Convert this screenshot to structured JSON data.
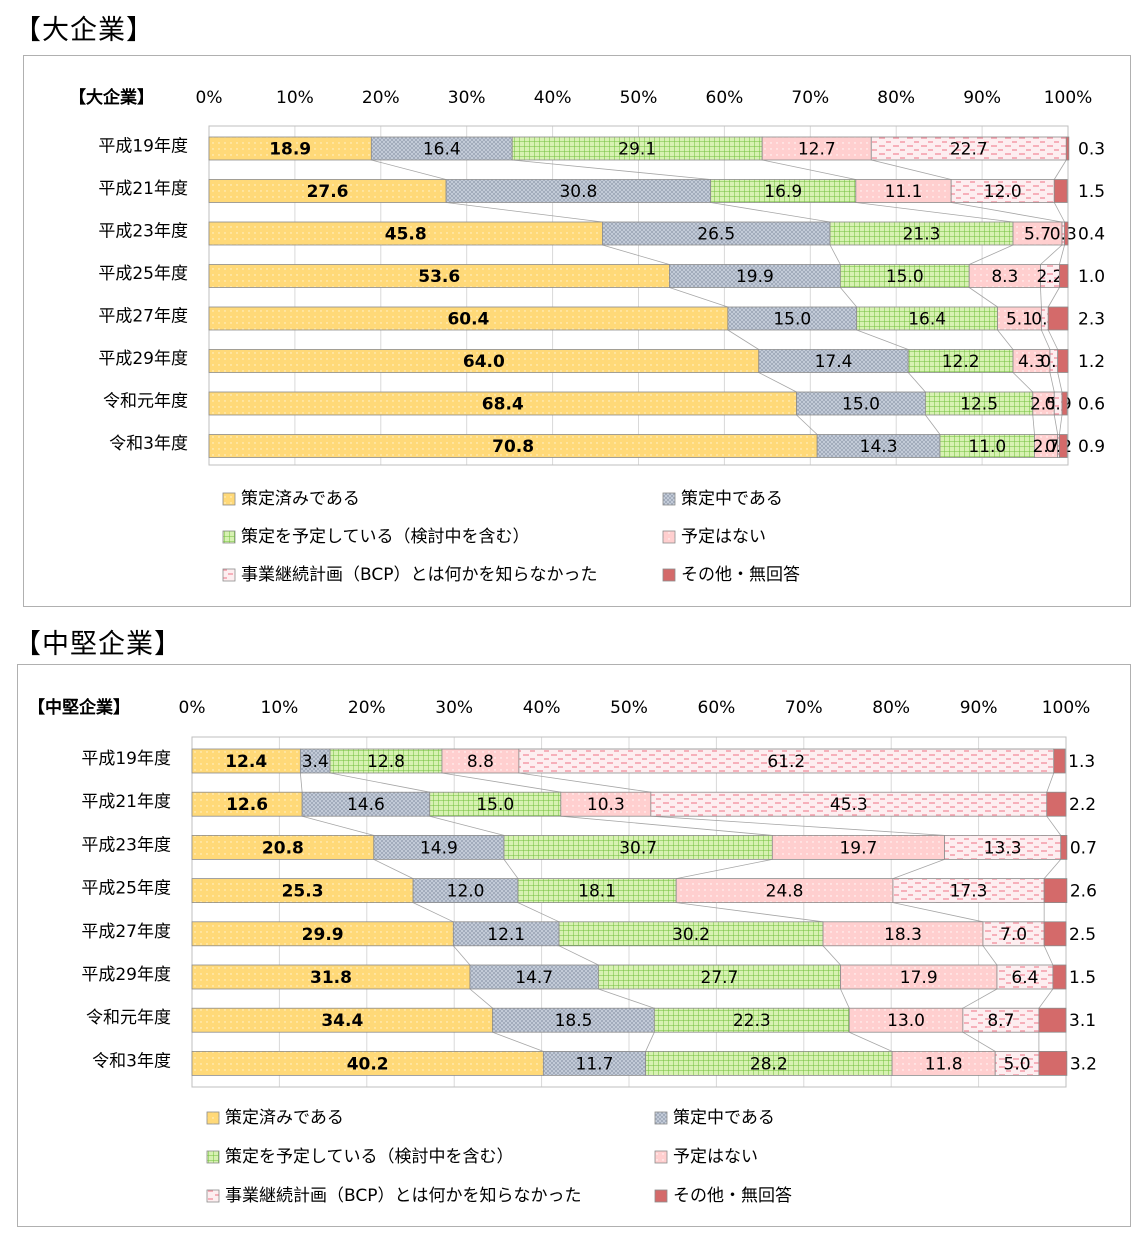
{
  "sections": [
    {
      "heading": "【大企業】"
    },
    {
      "heading": "【中堅企業】"
    }
  ],
  "colors": {
    "done": "#ffd978",
    "inprogress": "#c7cfdb",
    "planned": "#d7f1b2",
    "none": "#ffcfcf",
    "unknown": "#fdeef0",
    "other": "#d46a6a"
  },
  "chart_data": [
    {
      "type": "bar",
      "orientation": "horizontal",
      "stacked": true,
      "title": "【大企業】",
      "xlim": [
        0,
        100
      ],
      "ticks": [
        "0%",
        "10%",
        "20%",
        "30%",
        "40%",
        "50%",
        "60%",
        "70%",
        "80%",
        "90%",
        "100%"
      ],
      "categories": [
        "平成19年度",
        "平成21年度",
        "平成23年度",
        "平成25年度",
        "平成27年度",
        "平成29年度",
        "令和元年度",
        "令和3年度"
      ],
      "series": [
        {
          "name": "策定済みである",
          "key": "done",
          "values": [
            18.9,
            27.6,
            45.8,
            53.6,
            60.4,
            64.0,
            68.4,
            70.8
          ]
        },
        {
          "name": "策定中である",
          "key": "inprogress",
          "values": [
            16.4,
            30.8,
            26.5,
            19.9,
            15.0,
            17.4,
            15.0,
            14.3
          ]
        },
        {
          "name": "策定を予定している（検討中を含む）",
          "key": "planned",
          "values": [
            29.1,
            16.9,
            21.3,
            15.0,
            16.4,
            12.2,
            12.5,
            11.0
          ]
        },
        {
          "name": "予定はない",
          "key": "none",
          "values": [
            12.7,
            11.1,
            5.7,
            8.3,
            5.1,
            4.3,
            2.5,
            2.7
          ]
        },
        {
          "name": "事業継続計画（BCP）とは何かを知らなかった",
          "key": "unknown",
          "values": [
            22.7,
            12.0,
            0.3,
            2.2,
            0.8,
            0.9,
            0.9,
            0.2
          ]
        },
        {
          "name": "その他・無回答",
          "key": "other",
          "values": [
            0.3,
            1.5,
            0.4,
            1.0,
            2.3,
            1.2,
            0.6,
            0.9
          ]
        }
      ],
      "legend_position": "bottom",
      "grid": true
    },
    {
      "type": "bar",
      "orientation": "horizontal",
      "stacked": true,
      "title": "【中堅企業】",
      "xlim": [
        0,
        100
      ],
      "ticks": [
        "0%",
        "10%",
        "20%",
        "30%",
        "40%",
        "50%",
        "60%",
        "70%",
        "80%",
        "90%",
        "100%"
      ],
      "categories": [
        "平成19年度",
        "平成21年度",
        "平成23年度",
        "平成25年度",
        "平成27年度",
        "平成29年度",
        "令和元年度",
        "令和3年度"
      ],
      "series": [
        {
          "name": "策定済みである",
          "key": "done",
          "values": [
            12.4,
            12.6,
            20.8,
            25.3,
            29.9,
            31.8,
            34.4,
            40.2
          ]
        },
        {
          "name": "策定中である",
          "key": "inprogress",
          "values": [
            3.4,
            14.6,
            14.9,
            12.0,
            12.1,
            14.7,
            18.5,
            11.7
          ]
        },
        {
          "name": "策定を予定している（検討中を含む）",
          "key": "planned",
          "values": [
            12.8,
            15.0,
            30.7,
            18.1,
            30.2,
            27.7,
            22.3,
            28.2
          ]
        },
        {
          "name": "予定はない",
          "key": "none",
          "values": [
            8.8,
            10.3,
            19.7,
            24.8,
            18.3,
            17.9,
            13.0,
            11.8
          ]
        },
        {
          "name": "事業継続計画（BCP）とは何かを知らなかった",
          "key": "unknown",
          "values": [
            61.2,
            45.3,
            13.3,
            17.3,
            7.0,
            6.4,
            8.7,
            5.0
          ]
        },
        {
          "name": "その他・無回答",
          "key": "other",
          "values": [
            1.3,
            2.2,
            0.7,
            2.6,
            2.5,
            1.5,
            3.1,
            3.2
          ]
        }
      ],
      "legend_position": "bottom",
      "grid": true
    }
  ]
}
